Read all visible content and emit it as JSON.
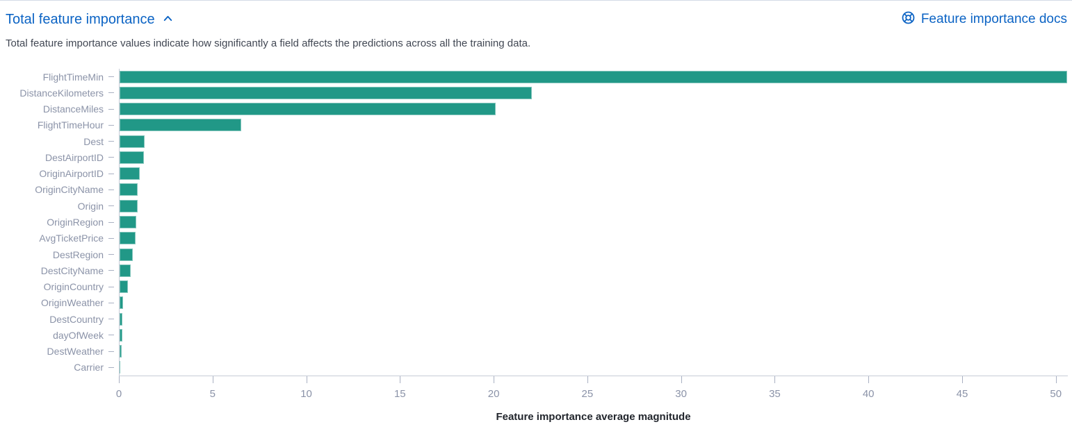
{
  "header": {
    "title": "Total feature importance",
    "collapse_icon": "chevron-up",
    "docs_link": {
      "label": "Feature importance docs",
      "icon": "lifebuoy-help"
    }
  },
  "description": "Total feature importance values indicate how significantly a field affects the predictions across all the training data.",
  "colors": {
    "link_blue": "#0b63c4",
    "bar_teal": "#219887",
    "axis_label_gray": "#8b93a8",
    "axis_line_gray": "#c6cbd7",
    "description_text": "#414753",
    "axis_title_dark": "#22262d"
  },
  "chart_data": {
    "type": "bar",
    "orientation": "horizontal",
    "title": "Total feature importance",
    "categories": [
      "FlightTimeMin",
      "DistanceKilometers",
      "DistanceMiles",
      "FlightTimeHour",
      "Dest",
      "DestAirportID",
      "OriginAirportID",
      "OriginCityName",
      "Origin",
      "OriginRegion",
      "AvgTicketPrice",
      "DestRegion",
      "DestCityName",
      "OriginCountry",
      "OriginWeather",
      "DestCountry",
      "dayOfWeek",
      "DestWeather",
      "Carrier"
    ],
    "values": [
      50.6,
      22.0,
      20.1,
      6.5,
      1.35,
      1.3,
      1.07,
      0.97,
      0.95,
      0.9,
      0.85,
      0.72,
      0.6,
      0.43,
      0.2,
      0.16,
      0.16,
      0.12,
      0.04
    ],
    "xlabel": "Feature importance average magnitude",
    "ylabel": "",
    "x_ticks": [
      0,
      5,
      10,
      15,
      20,
      25,
      30,
      35,
      40,
      45,
      50
    ],
    "xlim": [
      0,
      50.64
    ],
    "grid": false,
    "legend": "none",
    "bar_color": "#219887"
  }
}
